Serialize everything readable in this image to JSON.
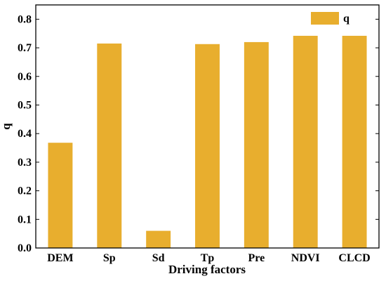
{
  "chart_data": {
    "type": "bar",
    "categories": [
      "DEM",
      "Sp",
      "Sd",
      "Tp",
      "Pre",
      "NDVI",
      "CLCD"
    ],
    "series": [
      {
        "name": "q",
        "values": [
          0.368,
          0.715,
          0.06,
          0.713,
          0.72,
          0.742,
          0.742
        ],
        "color": "#E8AE2E"
      }
    ],
    "xlabel": "Driving factors",
    "ylabel": "q",
    "ylim": [
      0,
      0.85
    ],
    "yticks": [
      "0.0",
      "0.1",
      "0.2",
      "0.3",
      "0.4",
      "0.5",
      "0.6",
      "0.7",
      "0.8"
    ],
    "grid": false,
    "legend_position": "top-right"
  }
}
